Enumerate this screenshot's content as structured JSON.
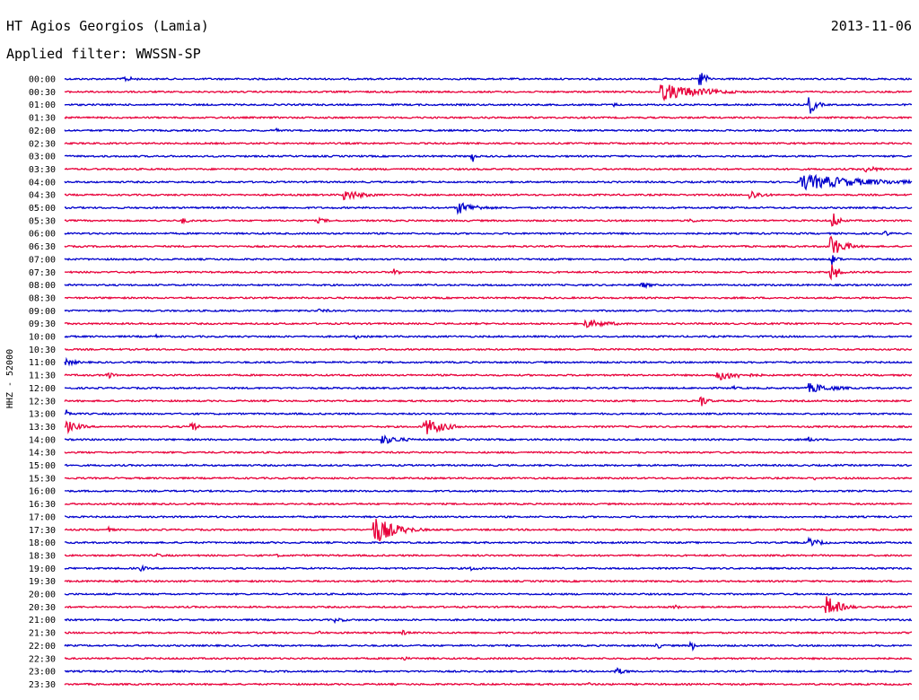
{
  "header": {
    "station": "HT Agios Georgios (Lamia)",
    "date": "2013-11-06",
    "filter": "Applied filter: WWSSN-SP"
  },
  "chart_data": {
    "type": "line",
    "channel_label": "HHZ - 52000",
    "trace_colors": [
      "#0000cc",
      "#e8003a"
    ],
    "rows": [
      {
        "label": "00:00",
        "events": [
          {
            "x": 0.07,
            "amp": 0.5,
            "dur": 0.02
          },
          {
            "x": 0.75,
            "amp": 1.6,
            "dur": 0.01
          }
        ]
      },
      {
        "label": "00:30",
        "events": [
          {
            "x": 0.705,
            "amp": 1.4,
            "dur": 0.06
          }
        ]
      },
      {
        "label": "01:00",
        "events": [
          {
            "x": 0.65,
            "amp": 0.3,
            "dur": 0.01
          },
          {
            "x": 0.88,
            "amp": 1.6,
            "dur": 0.01
          }
        ]
      },
      {
        "label": "01:30",
        "events": [
          {
            "x": 0.5,
            "amp": 0.3,
            "dur": 0.01
          }
        ]
      },
      {
        "label": "02:00",
        "events": [
          {
            "x": 0.25,
            "amp": 0.3,
            "dur": 0.01
          }
        ]
      },
      {
        "label": "02:30",
        "events": []
      },
      {
        "label": "03:00",
        "events": [
          {
            "x": 0.4818,
            "amp": 1.1,
            "dur": 0.003
          }
        ]
      },
      {
        "label": "03:30",
        "events": [
          {
            "x": 0.945,
            "amp": 0.5,
            "dur": 0.03
          }
        ]
      },
      {
        "label": "04:00",
        "events": [
          {
            "x": 0.87,
            "amp": 1.3,
            "dur": 0.1
          }
        ]
      },
      {
        "label": "04:30",
        "events": [
          {
            "x": 0.33,
            "amp": 0.9,
            "dur": 0.03
          },
          {
            "x": 0.81,
            "amp": 0.8,
            "dur": 0.02
          }
        ]
      },
      {
        "label": "05:00",
        "events": [
          {
            "x": 0.465,
            "amp": 1.0,
            "dur": 0.03
          }
        ]
      },
      {
        "label": "05:30",
        "events": [
          {
            "x": 0.14,
            "amp": 0.5,
            "dur": 0.01
          },
          {
            "x": 0.3,
            "amp": 0.4,
            "dur": 0.02
          },
          {
            "x": 0.74,
            "amp": 0.4,
            "dur": 0.01
          },
          {
            "x": 0.907,
            "amp": 1.4,
            "dur": 0.01
          }
        ]
      },
      {
        "label": "06:00",
        "events": [
          {
            "x": 0.97,
            "amp": 0.4,
            "dur": 0.01
          }
        ]
      },
      {
        "label": "06:30",
        "events": [
          {
            "x": 0.905,
            "amp": 1.8,
            "dur": 0.02
          }
        ]
      },
      {
        "label": "07:00",
        "events": [
          {
            "x": 0.905,
            "amp": 1.0,
            "dur": 0.01
          }
        ]
      },
      {
        "label": "07:30",
        "events": [
          {
            "x": 0.39,
            "amp": 0.6,
            "dur": 0.01
          },
          {
            "x": 0.905,
            "amp": 1.8,
            "dur": 0.01
          }
        ]
      },
      {
        "label": "08:00",
        "events": [
          {
            "x": 0.68,
            "amp": 0.5,
            "dur": 0.02
          }
        ]
      },
      {
        "label": "08:30",
        "events": []
      },
      {
        "label": "09:00",
        "events": [
          {
            "x": 0.3,
            "amp": 0.3,
            "dur": 0.03
          }
        ]
      },
      {
        "label": "09:30",
        "events": [
          {
            "x": 0.615,
            "amp": 0.7,
            "dur": 0.04
          }
        ]
      },
      {
        "label": "10:00",
        "events": [
          {
            "x": 0.11,
            "amp": 0.3,
            "dur": 0.01
          },
          {
            "x": 0.345,
            "amp": 0.4,
            "dur": 0.003
          }
        ]
      },
      {
        "label": "10:30",
        "events": []
      },
      {
        "label": "11:00",
        "events": [
          {
            "x": 0.003,
            "amp": 0.5,
            "dur": 0.02
          }
        ]
      },
      {
        "label": "11:30",
        "events": [
          {
            "x": 0.05,
            "amp": 0.7,
            "dur": 0.01
          },
          {
            "x": 0.77,
            "amp": 0.9,
            "dur": 0.04
          }
        ]
      },
      {
        "label": "12:00",
        "events": [
          {
            "x": 0.79,
            "amp": 0.3,
            "dur": 0.01
          },
          {
            "x": 0.88,
            "amp": 0.8,
            "dur": 0.04
          }
        ]
      },
      {
        "label": "12:30",
        "events": [
          {
            "x": 0.75,
            "amp": 1.2,
            "dur": 0.01
          }
        ]
      },
      {
        "label": "13:00",
        "events": [
          {
            "x": 0.004,
            "amp": 0.8,
            "dur": 0.005
          }
        ]
      },
      {
        "label": "13:30",
        "events": [
          {
            "x": 0.004,
            "amp": 0.9,
            "dur": 0.02
          },
          {
            "x": 0.15,
            "amp": 0.9,
            "dur": 0.01
          },
          {
            "x": 0.425,
            "amp": 1.5,
            "dur": 0.03
          }
        ]
      },
      {
        "label": "14:00",
        "events": [
          {
            "x": 0.375,
            "amp": 0.8,
            "dur": 0.03
          },
          {
            "x": 0.88,
            "amp": 0.5,
            "dur": 0.01
          }
        ]
      },
      {
        "label": "14:30",
        "events": []
      },
      {
        "label": "15:00",
        "events": []
      },
      {
        "label": "15:30",
        "events": [
          {
            "x": 0.885,
            "amp": 0.4,
            "dur": 0.003
          }
        ]
      },
      {
        "label": "16:00",
        "events": []
      },
      {
        "label": "16:30",
        "events": []
      },
      {
        "label": "17:00",
        "events": []
      },
      {
        "label": "17:30",
        "events": [
          {
            "x": 0.052,
            "amp": 0.4,
            "dur": 0.01
          },
          {
            "x": 0.366,
            "amp": 2.4,
            "dur": 0.03
          }
        ]
      },
      {
        "label": "18:00",
        "events": [
          {
            "x": 0.88,
            "amp": 0.7,
            "dur": 0.02
          }
        ]
      },
      {
        "label": "18:30",
        "events": [
          {
            "x": 0.08,
            "amp": 0.3,
            "dur": 0.01
          },
          {
            "x": 0.11,
            "amp": 0.3,
            "dur": 0.02
          },
          {
            "x": 0.25,
            "amp": 0.3,
            "dur": 0.01
          }
        ]
      },
      {
        "label": "19:00",
        "events": [
          {
            "x": 0.09,
            "amp": 0.5,
            "dur": 0.01
          },
          {
            "x": 0.48,
            "amp": 0.4,
            "dur": 0.02
          }
        ]
      },
      {
        "label": "19:30",
        "events": []
      },
      {
        "label": "20:00",
        "events": []
      },
      {
        "label": "20:30",
        "events": [
          {
            "x": 0.72,
            "amp": 0.4,
            "dur": 0.01
          },
          {
            "x": 0.9,
            "amp": 1.8,
            "dur": 0.02
          }
        ]
      },
      {
        "label": "21:00",
        "events": [
          {
            "x": 0.32,
            "amp": 0.4,
            "dur": 0.02
          }
        ]
      },
      {
        "label": "21:30",
        "events": [
          {
            "x": 0.3,
            "amp": 0.3,
            "dur": 0.01
          },
          {
            "x": 0.4,
            "amp": 0.4,
            "dur": 0.01
          }
        ]
      },
      {
        "label": "22:00",
        "events": [
          {
            "x": 0.7,
            "amp": 0.5,
            "dur": 0.01
          },
          {
            "x": 0.74,
            "amp": 1.0,
            "dur": 0.005
          }
        ]
      },
      {
        "label": "22:30",
        "events": [
          {
            "x": 0.4,
            "amp": 0.4,
            "dur": 0.01
          }
        ]
      },
      {
        "label": "23:00",
        "events": [
          {
            "x": 0.65,
            "amp": 0.6,
            "dur": 0.02
          }
        ]
      },
      {
        "label": "23:30",
        "events": [
          {
            "x": 0.62,
            "amp": 0.3,
            "dur": 0.01
          }
        ]
      }
    ]
  }
}
